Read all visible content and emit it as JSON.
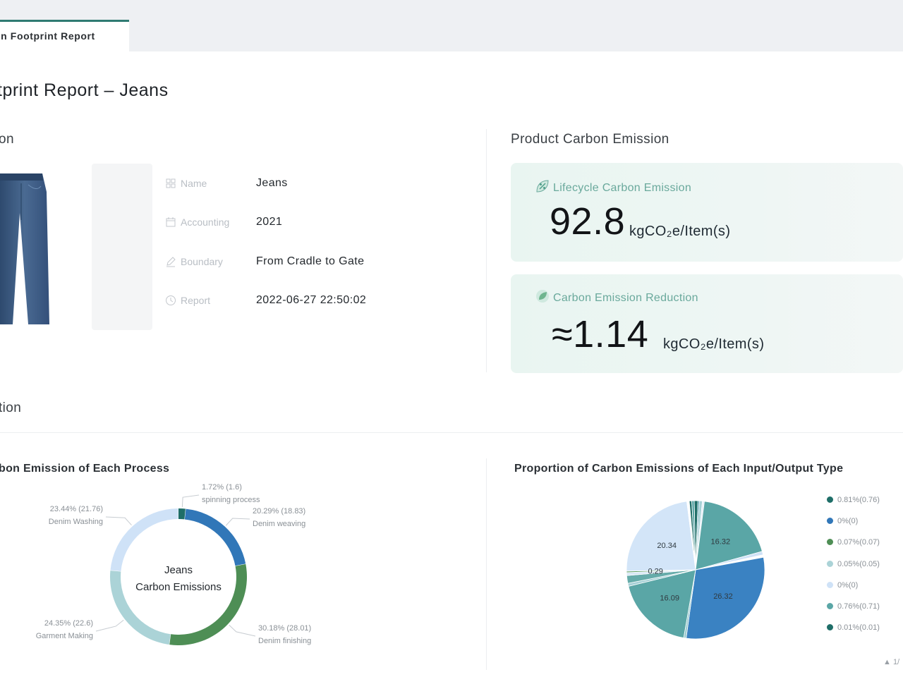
{
  "tab": {
    "label": "on Footprint Report"
  },
  "page": {
    "title": "tprint Report – Jeans"
  },
  "sections": {
    "product_info": "on",
    "product_emission": "Product Carbon Emission",
    "distribution": "tion"
  },
  "info": {
    "rows": [
      {
        "label": "Name",
        "value": "Jeans",
        "icon": "grid-icon"
      },
      {
        "label": "Accounting",
        "value": "2021",
        "icon": "calendar-icon"
      },
      {
        "label": "Boundary",
        "value": "From Cradle to Gate",
        "icon": "pen-icon"
      },
      {
        "label": "Report",
        "value": "2022-06-27 22:50:02",
        "icon": "clock-icon"
      }
    ]
  },
  "cards": {
    "lifecycle": {
      "label": "Lifecycle Carbon Emission",
      "value": "92.8",
      "unit": "kgCO₂e/Item(s)",
      "icon": "leaf-percent-icon"
    },
    "reduction": {
      "label": "Carbon Emission Reduction",
      "value": "≈1.14",
      "unit": "kgCO₂e/Item(s)",
      "icon": "leaf-icon"
    }
  },
  "chart_data": [
    {
      "type": "pie",
      "variant": "donut",
      "title": "bon Emission of Each Process",
      "center_label": [
        "Jeans",
        "Carbon Emissions"
      ],
      "slices": [
        {
          "name": "spinning process",
          "value": 1.6,
          "label": "1.72% (1.6)",
          "color": "#1f6e68"
        },
        {
          "name": "Denim weaving",
          "value": 18.83,
          "label": "20.29% (18.83)",
          "color": "#3177b8"
        },
        {
          "name": "Denim finishing",
          "value": 28.01,
          "label": "30.18% (28.01)",
          "color": "#4e8e55"
        },
        {
          "name": "Garment Making",
          "value": 22.6,
          "label": "24.35% (22.6)",
          "color": "#abd3d7"
        },
        {
          "name": "Denim Washing",
          "value": 21.76,
          "label": "23.44% (21.76)",
          "color": "#cfe2f7"
        }
      ]
    },
    {
      "type": "pie",
      "title": "Proportion of Carbon Emissions of Each Input/Output Type",
      "slices": [
        {
          "value": 0.76,
          "label": "",
          "color": "#1f6e68"
        },
        {
          "value": 0.3,
          "label": "",
          "color": "#3d93a3"
        },
        {
          "value": 0.6,
          "label": "",
          "color": "#a6d0d6"
        },
        {
          "value": 0.4,
          "label": "",
          "color": "#e4eef8"
        },
        {
          "value": 16.32,
          "label": "16.32",
          "color": "#5aa6a6"
        },
        {
          "value": 0.71,
          "label": "",
          "color": "#cfe2f7"
        },
        {
          "value": 0.5,
          "label": "",
          "color": "#ffffff"
        },
        {
          "value": 26.32,
          "label": "26.32",
          "color": "#3a82c2"
        },
        {
          "value": 0.5,
          "label": "",
          "color": "#9ccbd0"
        },
        {
          "value": 16.09,
          "label": "16.09",
          "color": "#5aa6a6"
        },
        {
          "value": 0.6,
          "label": "",
          "color": "#a6d0d6"
        },
        {
          "value": 1.6,
          "label": "",
          "color": "#66acaa"
        },
        {
          "value": 0.6,
          "label": "",
          "color": "#d8e8f6"
        },
        {
          "value": 0.29,
          "label": "0.29",
          "color": "#5c9e62"
        },
        {
          "value": 20.34,
          "label": "20.34",
          "color": "#d3e5f8"
        },
        {
          "value": 0.5,
          "label": "",
          "color": "#ffffff"
        },
        {
          "value": 0.5,
          "label": "",
          "color": "#1f6e68"
        },
        {
          "value": 0.5,
          "label": "",
          "color": "#5aa6a6"
        }
      ],
      "legend": [
        {
          "label": "0.81%(0.76)",
          "color": "#1f6e68"
        },
        {
          "label": "0%(0)",
          "color": "#3177b8"
        },
        {
          "label": "0.07%(0.07)",
          "color": "#4e8e55"
        },
        {
          "label": "0.05%(0.05)",
          "color": "#abd3d7"
        },
        {
          "label": "0%(0)",
          "color": "#cfe2f7"
        },
        {
          "label": "0.76%(0.71)",
          "color": "#5aa6a6"
        },
        {
          "label": "0.01%(0.01)",
          "color": "#1f6e68"
        }
      ],
      "legend_position": "right"
    }
  ],
  "pager": {
    "text": "▲ 1/"
  }
}
